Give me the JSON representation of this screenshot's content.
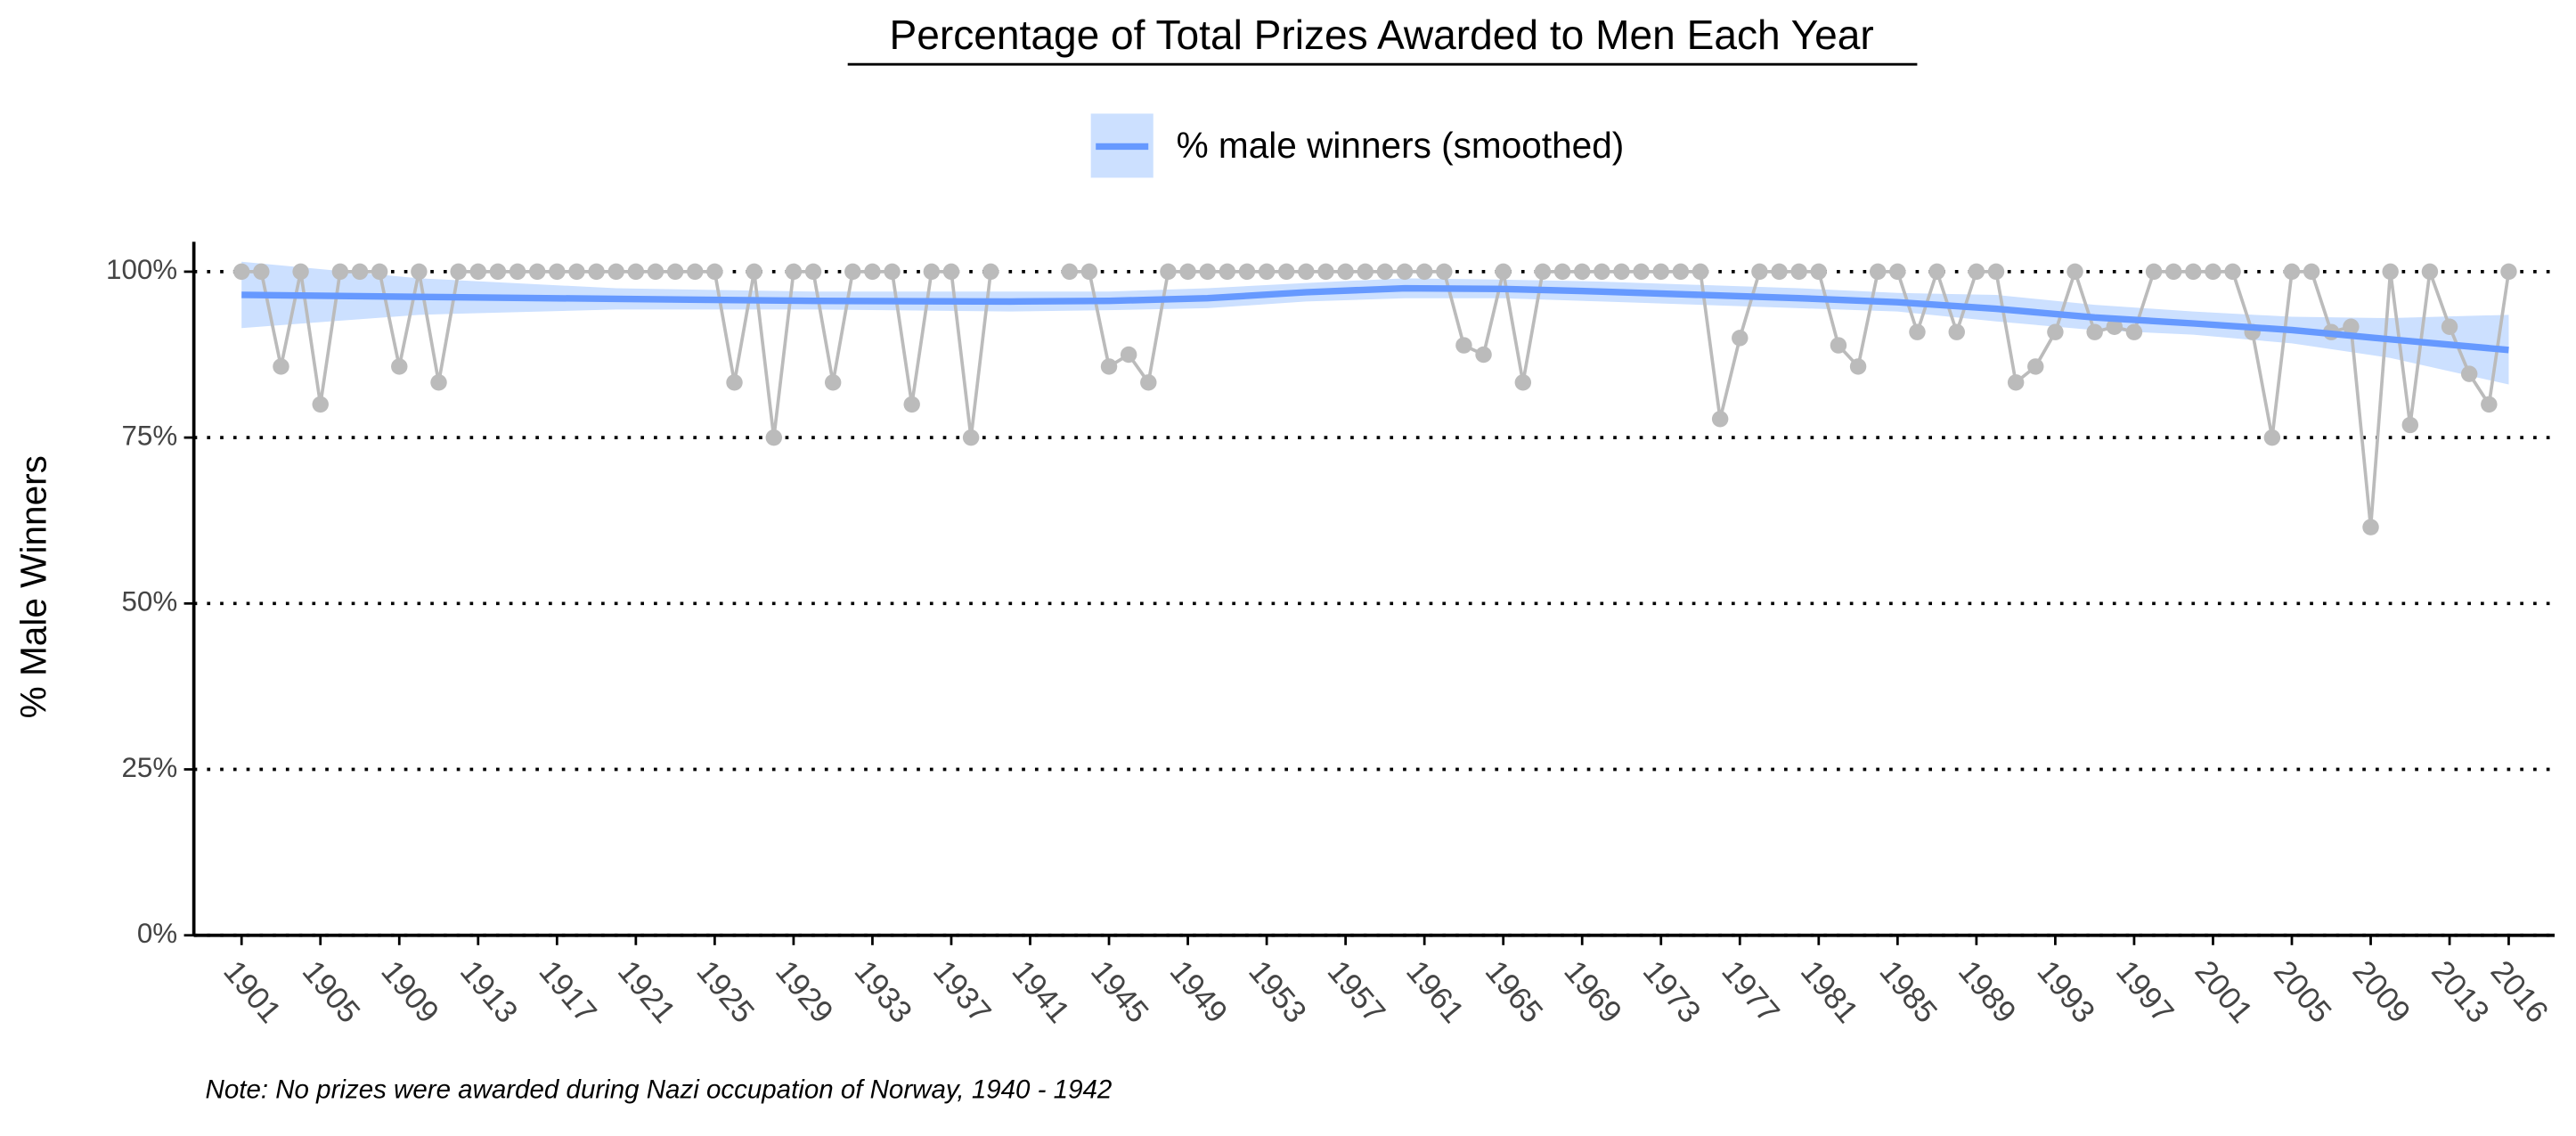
{
  "chart_data": {
    "type": "line",
    "title": "Percentage of Total Prizes Awarded to Men Each Year",
    "ylabel": "% Male Winners",
    "note": "Note: No prizes were awarded during Nazi occupation of Norway, 1940 - 1942",
    "x": [
      1901,
      1902,
      1903,
      1904,
      1905,
      1906,
      1907,
      1908,
      1909,
      1910,
      1911,
      1912,
      1913,
      1914,
      1915,
      1916,
      1917,
      1918,
      1919,
      1920,
      1921,
      1922,
      1923,
      1924,
      1925,
      1926,
      1927,
      1928,
      1929,
      1930,
      1931,
      1932,
      1933,
      1934,
      1935,
      1936,
      1937,
      1938,
      1939,
      1940,
      1941,
      1942,
      1943,
      1944,
      1945,
      1946,
      1947,
      1948,
      1949,
      1950,
      1951,
      1952,
      1953,
      1954,
      1955,
      1956,
      1957,
      1958,
      1959,
      1960,
      1961,
      1962,
      1963,
      1964,
      1965,
      1966,
      1967,
      1968,
      1969,
      1970,
      1971,
      1972,
      1973,
      1974,
      1975,
      1976,
      1977,
      1978,
      1979,
      1980,
      1981,
      1982,
      1983,
      1984,
      1985,
      1986,
      1987,
      1988,
      1989,
      1990,
      1991,
      1992,
      1993,
      1994,
      1995,
      1996,
      1997,
      1998,
      1999,
      2000,
      2001,
      2002,
      2003,
      2004,
      2005,
      2006,
      2007,
      2008,
      2009,
      2010,
      2011,
      2012,
      2013,
      2014,
      2015,
      2016
    ],
    "series": [
      {
        "name": "% male winners",
        "color": "#bbbbbb",
        "values": [
          100,
          100,
          85.7,
          100,
          80,
          100,
          100,
          100,
          85.7,
          100,
          83.3,
          100,
          100,
          100,
          100,
          100,
          100,
          100,
          100,
          100,
          100,
          100,
          100,
          100,
          100,
          83.3,
          100,
          75,
          100,
          100,
          83.3,
          100,
          100,
          100,
          80,
          100,
          100,
          75,
          100,
          null,
          null,
          null,
          100,
          100,
          85.7,
          87.5,
          83.3,
          100,
          100,
          100,
          100,
          100,
          100,
          100,
          100,
          100,
          100,
          100,
          100,
          100,
          100,
          100,
          88.9,
          87.5,
          100,
          83.3,
          100,
          100,
          100,
          100,
          100,
          100,
          100,
          100,
          100,
          77.8,
          90,
          100,
          100,
          100,
          100,
          88.9,
          85.7,
          100,
          100,
          90.9,
          100,
          90.9,
          100,
          100,
          83.3,
          85.7,
          90.9,
          100,
          90.9,
          91.7,
          90.9,
          100,
          100,
          100,
          100,
          100,
          90.9,
          75,
          100,
          100,
          90.9,
          91.7,
          61.5,
          100,
          76.9,
          100,
          91.7,
          84.6,
          80,
          100
        ]
      }
    ],
    "smooth": {
      "name": "% male winners (smoothed)",
      "color": "#6699ff",
      "band_color": "#cce0ff",
      "x": [
        1901,
        1910,
        1920,
        1930,
        1940,
        1945,
        1950,
        1955,
        1960,
        1965,
        1970,
        1975,
        1980,
        1985,
        1990,
        1995,
        2000,
        2005,
        2010,
        2016
      ],
      "values": [
        96.5,
        96.2,
        95.9,
        95.6,
        95.5,
        95.6,
        96,
        96.9,
        97.5,
        97.4,
        97,
        96.5,
        96,
        95.4,
        94.4,
        93.1,
        92.2,
        91.2,
        89.8,
        88.2
      ],
      "lower": [
        91.5,
        93.5,
        94.3,
        94.3,
        94,
        94.2,
        94.5,
        95.5,
        96,
        96,
        95.5,
        95,
        94.5,
        94,
        92.5,
        91.2,
        90.5,
        89.2,
        87,
        83
      ],
      "upper": [
        101.5,
        99,
        97.5,
        97,
        97,
        97,
        97.5,
        98.3,
        99,
        98.8,
        98.5,
        98,
        97.5,
        96.8,
        96.5,
        95,
        94,
        93.2,
        93,
        93.5
      ]
    },
    "xlim": [
      1898.58,
      2018.33
    ],
    "ylim": [
      0,
      104.5
    ],
    "xticks": [
      1901,
      1905,
      1909,
      1913,
      1917,
      1921,
      1925,
      1929,
      1933,
      1937,
      1941,
      1945,
      1949,
      1953,
      1957,
      1961,
      1965,
      1969,
      1973,
      1977,
      1981,
      1985,
      1989,
      1993,
      1997,
      2001,
      2005,
      2009,
      2013,
      2016
    ],
    "yticks": [
      {
        "value": 0,
        "label": "0%"
      },
      {
        "value": 25,
        "label": "25%"
      },
      {
        "value": 50,
        "label": "50%"
      },
      {
        "value": 75,
        "label": "75%"
      },
      {
        "value": 100,
        "label": "100%"
      }
    ],
    "grid": true
  }
}
